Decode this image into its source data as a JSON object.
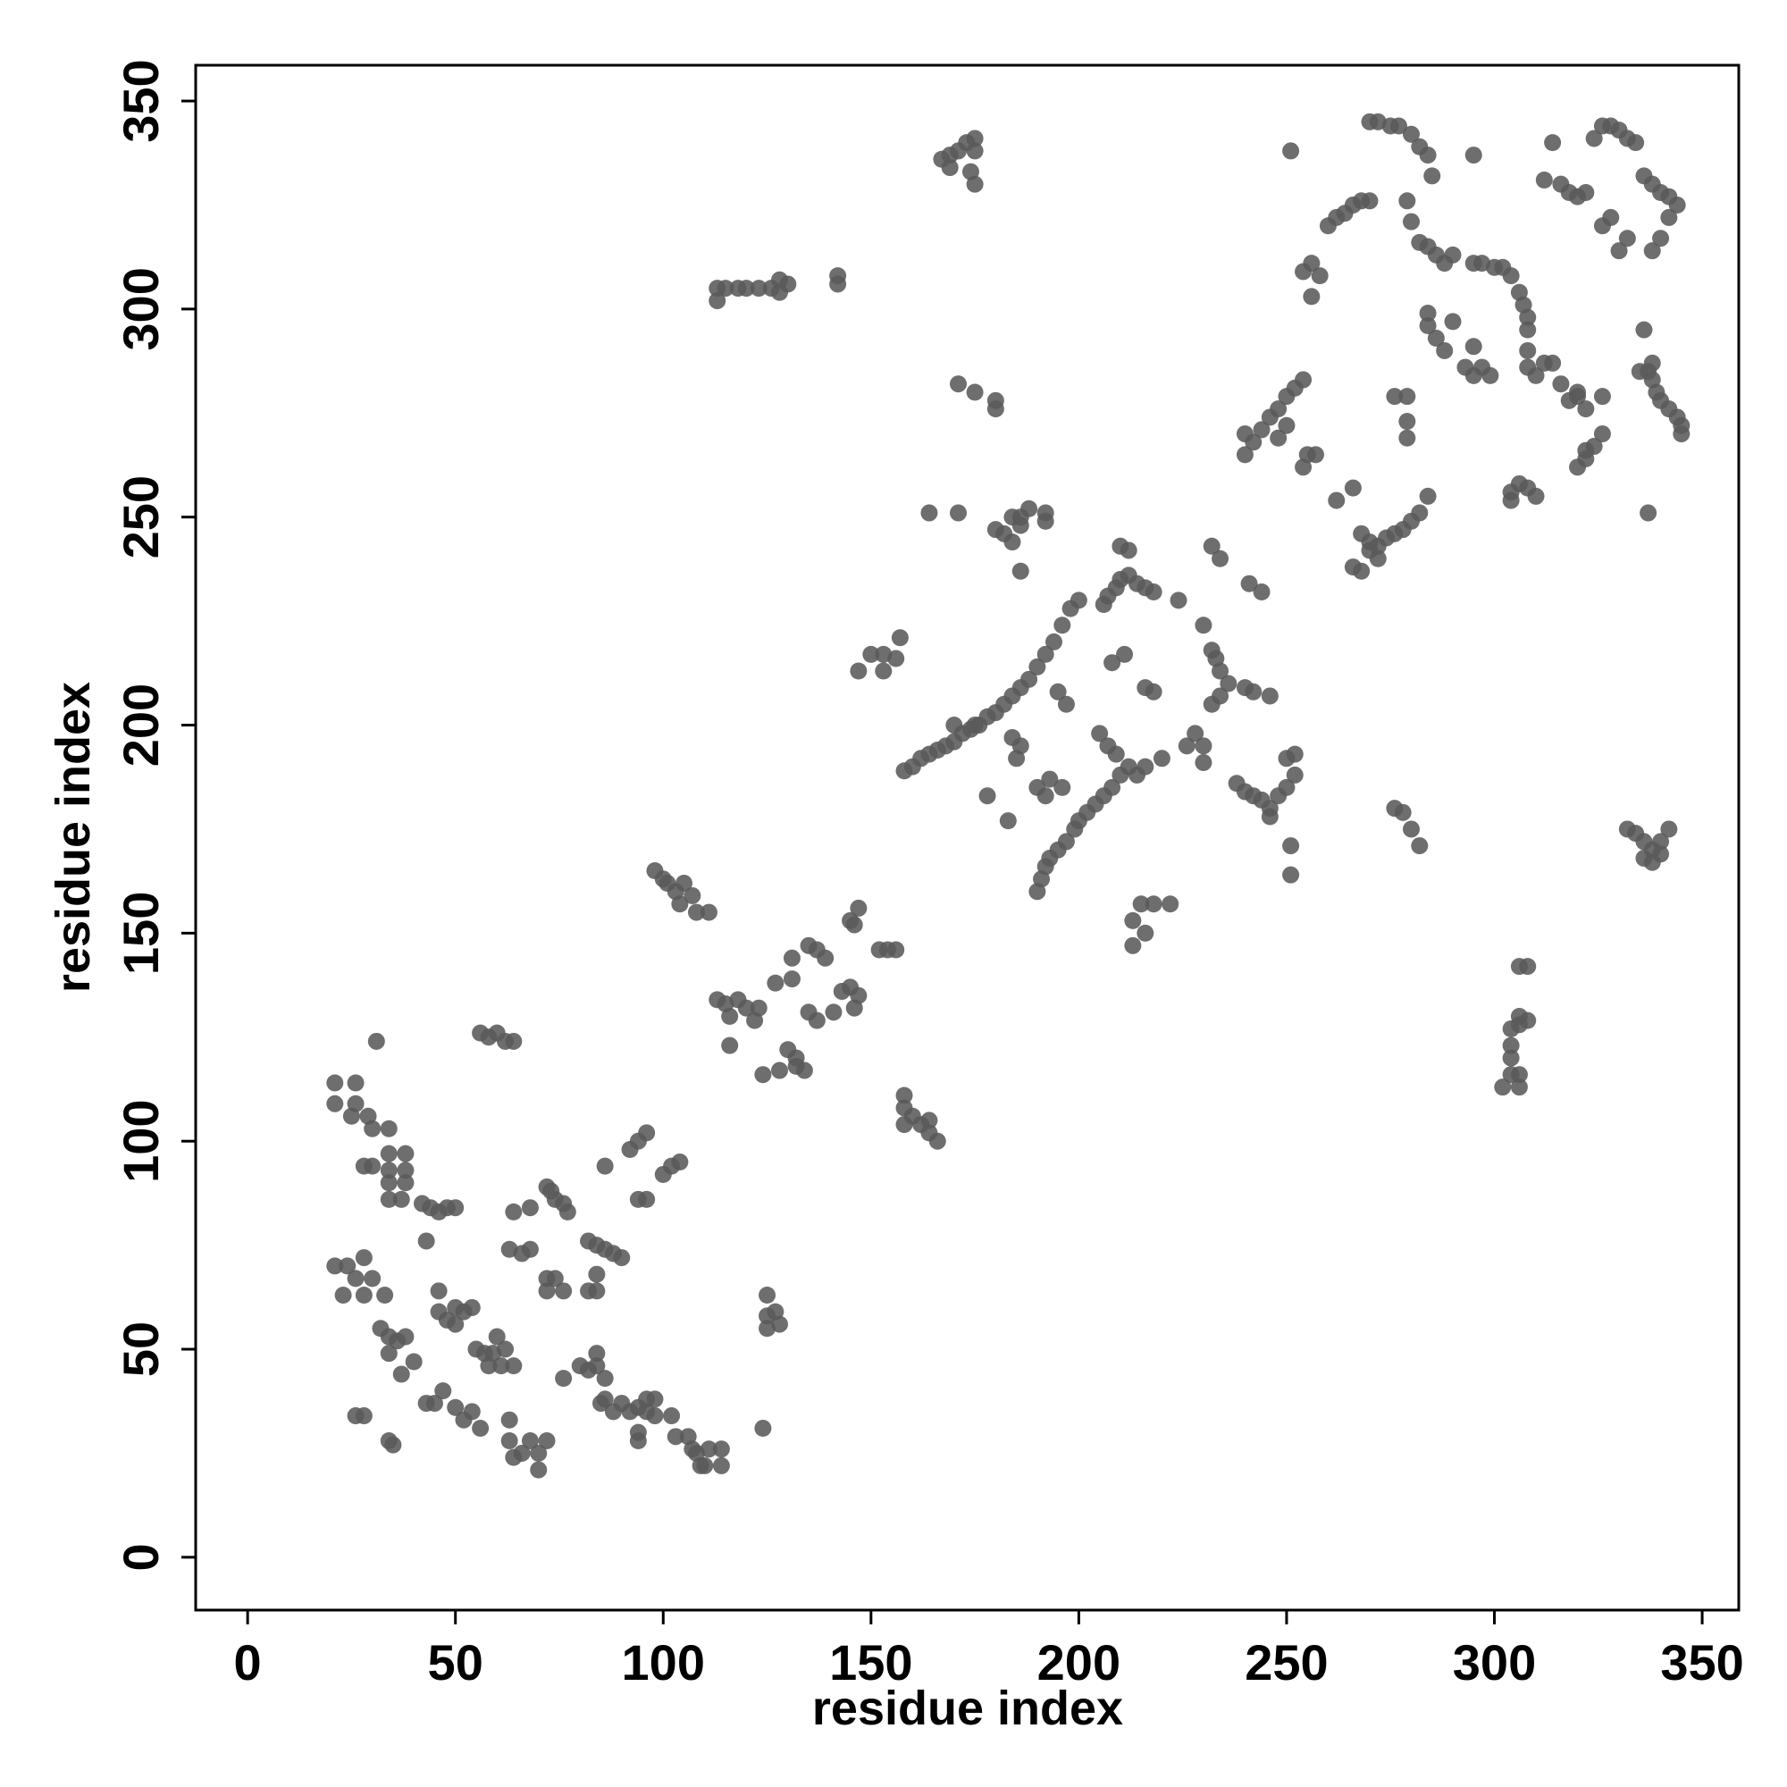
{
  "chart_data": {
    "type": "scatter",
    "x_label": "residue index",
    "y_label": "residue index",
    "xlim": [
      -12.5,
      358.8
    ],
    "ylim": [
      -12.7,
      358.6
    ],
    "xticks": [
      0,
      50,
      100,
      150,
      200,
      250,
      300,
      350
    ],
    "yticks": [
      0,
      50,
      100,
      150,
      200,
      250,
      300,
      350
    ],
    "series": [
      {
        "color": "#5a5a5a",
        "x": [
          21,
          26,
          21,
          26,
          25,
          29,
          30,
          34,
          28,
          30,
          34,
          38,
          34,
          38,
          34,
          38,
          34,
          37,
          42,
          44,
          46,
          48,
          50,
          43,
          31,
          56,
          58,
          60,
          62,
          64,
          64,
          68,
          63,
          66,
          68,
          72,
          73,
          74,
          76,
          77,
          72,
          74,
          72,
          76,
          82,
          84,
          86,
          88,
          90,
          84,
          82,
          84,
          86,
          92,
          94,
          96,
          94,
          96,
          100,
          102,
          104,
          21,
          24,
          26,
          23,
          28,
          30,
          28,
          33,
          32,
          34,
          36,
          38,
          40,
          34,
          37,
          43,
          45,
          46,
          46,
          48,
          50,
          50,
          52,
          54,
          47,
          50,
          52,
          54,
          56,
          55,
          57,
          59,
          60,
          62,
          58,
          61,
          64,
          26,
          28,
          34,
          35,
          63,
          63,
          64,
          66,
          68,
          70,
          72,
          70,
          76,
          80,
          82,
          84,
          84,
          86,
          85,
          88,
          86,
          90,
          92,
          94,
          96,
          98,
          96,
          98,
          94,
          94,
          102,
          103,
          106,
          107,
          108,
          110,
          111,
          114,
          114,
          109,
          124,
          125,
          125,
          125,
          127,
          128,
          98,
          100,
          101,
          103,
          104,
          105,
          107,
          108,
          111,
          113,
          115,
          116,
          118,
          120,
          122,
          123,
          116,
          124,
          127,
          131,
          131,
          135,
          137,
          139,
          130,
          132,
          134,
          128,
          132,
          135,
          137,
          141,
          143,
          145,
          147,
          146,
          146,
          147,
          145,
          152,
          154,
          156,
          158,
          160,
          162,
          164,
          166,
          158,
          158,
          164,
          113,
          115,
          118,
          120,
          123,
          126,
          128,
          130,
          128,
          113,
          142,
          142,
          167,
          169,
          171,
          173,
          175,
          175,
          169,
          174,
          175,
          171,
          175,
          180,
          180,
          164,
          171,
          147,
          150,
          153,
          156,
          157,
          153,
          158,
          160,
          162,
          164,
          166,
          168,
          170,
          172,
          174,
          176,
          178,
          180,
          182,
          184,
          186,
          188,
          190,
          192,
          194,
          196,
          198,
          200,
          170,
          175,
          178,
          183,
          184,
          186,
          185,
          190,
          192,
          193,
          196,
          190,
          191,
          192,
          193,
          195,
          197,
          199,
          200,
          202,
          204,
          206,
          208,
          210,
          212,
          214,
          216,
          220,
          197,
          195,
          205,
          207,
          209,
          206,
          207,
          209,
          210,
          212,
          214,
          216,
          218,
          210,
          212,
          224,
          211,
          208,
          216,
          218,
          215,
          218,
          222,
          213,
          213,
          216,
          228,
          230,
          230,
          226,
          232,
          234,
          236,
          234,
          233,
          232,
          230,
          238,
          232,
          234,
          180,
          182,
          184,
          186,
          188,
          186,
          184,
          186,
          192,
          192,
          241,
          244,
          240,
          242,
          246,
          240,
          242,
          244,
          246,
          248,
          250,
          252,
          250,
          252,
          251,
          251,
          246,
          240,
          242,
          244,
          246,
          248,
          250,
          252,
          254,
          240,
          250,
          248,
          254,
          255,
          257,
          262,
          266,
          268,
          270,
          272,
          274,
          276,
          278,
          280,
          282,
          284,
          266,
          268,
          270,
          272,
          276,
          279,
          279,
          279,
          254,
          256,
          258,
          256,
          260,
          262,
          264,
          266,
          268,
          270,
          251,
          270,
          272,
          275,
          277,
          280,
          282,
          284,
          285,
          279,
          280,
          282,
          284,
          286,
          288,
          290,
          284,
          284,
          286,
          288,
          290,
          293,
          295,
          297,
          299,
          295,
          295,
          297,
          300,
          302,
          304,
          295,
          306,
          307,
          308,
          308,
          308,
          308,
          310,
          312,
          314,
          316,
          320,
          318,
          304,
          306,
          308,
          310,
          304,
          312,
          314,
          316,
          318,
          320,
          322,
          324,
          326,
          328,
          330,
          332,
          334,
          330,
          326,
          328,
          332,
          336,
          337,
          338,
          339,
          340,
          342,
          344,
          345,
          345,
          335,
          338,
          336,
          338,
          340,
          342,
          344,
          342,
          340,
          338,
          320,
          322,
          324,
          326,
          322,
          326,
          320,
          322,
          337,
          332,
          334,
          336,
          338,
          340,
          342,
          336,
          338,
          340,
          276,
          278,
          280,
          282,
          302,
          304,
          304,
          304,
          304,
          306,
          306,
          308,
          306,
          308,
          306,
          306
        ],
        "values": [
          114,
          114,
          109,
          109,
          106,
          106,
          103,
          103,
          94,
          94,
          97,
          97,
          93,
          93,
          90,
          90,
          86,
          86,
          85,
          84,
          83,
          84,
          84,
          76,
          124,
          126,
          125,
          126,
          124,
          124,
          83,
          84,
          74,
          73,
          74,
          89,
          88,
          86,
          85,
          83,
          67,
          67,
          64,
          64,
          76,
          75,
          74,
          73,
          72,
          68,
          64,
          64,
          94,
          98,
          100,
          102,
          86,
          86,
          92,
          94,
          95,
          70,
          70,
          67,
          63,
          72,
          67,
          63,
          63,
          55,
          53,
          52,
          53,
          47,
          49,
          44,
          37,
          37,
          64,
          59,
          57,
          56,
          60,
          59,
          60,
          40,
          36,
          33,
          35,
          31,
          50,
          49,
          49,
          53,
          50,
          46,
          46,
          46,
          34,
          34,
          28,
          27,
          33,
          28,
          24,
          25,
          28,
          21,
          28,
          25,
          43,
          46,
          45,
          46,
          49,
          43,
          37,
          35,
          38,
          37,
          35,
          36,
          38,
          38,
          35,
          34,
          30,
          28,
          34,
          29,
          29,
          26,
          25,
          22,
          26,
          22,
          26,
          22,
          31,
          55,
          58,
          63,
          59,
          56,
          165,
          163,
          162,
          160,
          157,
          162,
          159,
          155,
          155,
          134,
          133,
          130,
          134,
          132,
          129,
          132,
          123,
          116,
          138,
          139,
          144,
          147,
          146,
          144,
          122,
          120,
          117,
          117,
          118,
          131,
          129,
          131,
          136,
          137,
          135,
          132,
          152,
          156,
          153,
          146,
          146,
          146,
          108,
          106,
          104,
          102,
          100,
          104,
          111,
          105,
          305,
          305,
          305,
          305,
          305,
          305,
          307,
          306,
          304,
          302,
          308,
          306,
          336,
          334,
          338,
          340,
          338,
          341,
          337,
          333,
          330,
          282,
          280,
          278,
          276,
          251,
          251,
          213,
          217,
          217,
          216,
          221,
          213,
          189,
          190,
          192,
          193,
          194,
          195,
          196,
          198,
          199,
          200,
          202,
          203,
          205,
          207,
          209,
          211,
          214,
          217,
          220,
          224,
          228,
          230,
          200,
          200,
          183,
          177,
          197,
          195,
          192,
          185,
          183,
          187,
          185,
          160,
          163,
          166,
          168,
          170,
          172,
          175,
          177,
          179,
          181,
          183,
          185,
          188,
          190,
          188,
          190,
          192,
          205,
          208,
          198,
          195,
          193,
          229,
          231,
          233,
          235,
          236,
          234,
          233,
          232,
          243,
          242,
          230,
          217,
          215,
          209,
          208,
          157,
          157,
          157,
          153,
          147,
          150,
          198,
          195,
          191,
          195,
          205,
          207,
          210,
          213,
          216,
          218,
          224,
          186,
          243,
          240,
          247,
          246,
          244,
          248,
          252,
          250,
          250,
          237,
          251,
          249,
          234,
          232,
          209,
          208,
          207,
          184,
          183,
          182,
          180,
          183,
          185,
          188,
          192,
          193,
          171,
          164,
          178,
          265,
          268,
          271,
          274,
          276,
          279,
          281,
          283,
          270,
          272,
          269,
          262,
          265,
          265,
          254,
          257,
          246,
          244,
          243,
          245,
          246,
          247,
          249,
          251,
          255,
          238,
          237,
          242,
          240,
          279,
          279,
          269,
          273,
          309,
          303,
          308,
          311,
          320,
          322,
          323,
          325,
          326,
          326,
          338,
          345,
          345,
          344,
          344,
          342,
          339,
          337,
          332,
          326,
          321,
          316,
          315,
          313,
          311,
          313,
          299,
          296,
          293,
          290,
          297,
          286,
          284,
          286,
          284,
          291,
          311,
          311,
          310,
          310,
          308,
          337,
          304,
          301,
          298,
          295,
          290,
          286,
          284,
          287,
          287,
          282,
          280,
          278,
          256,
          258,
          257,
          255,
          254,
          331,
          340,
          330,
          328,
          327,
          328,
          341,
          344,
          344,
          343,
          341,
          340,
          314,
          320,
          322,
          317,
          295,
          285,
          283,
          280,
          278,
          276,
          274,
          272,
          270,
          285,
          287,
          332,
          330,
          328,
          327,
          325,
          322,
          317,
          314,
          262,
          264,
          267,
          270,
          266,
          279,
          279,
          276,
          251,
          175,
          174,
          172,
          170,
          172,
          175,
          168,
          167,
          169,
          180,
          179,
          175,
          171,
          113,
          116,
          120,
          123,
          127,
          128,
          130,
          129,
          142,
          142,
          113,
          116
        ]
      }
    ]
  }
}
